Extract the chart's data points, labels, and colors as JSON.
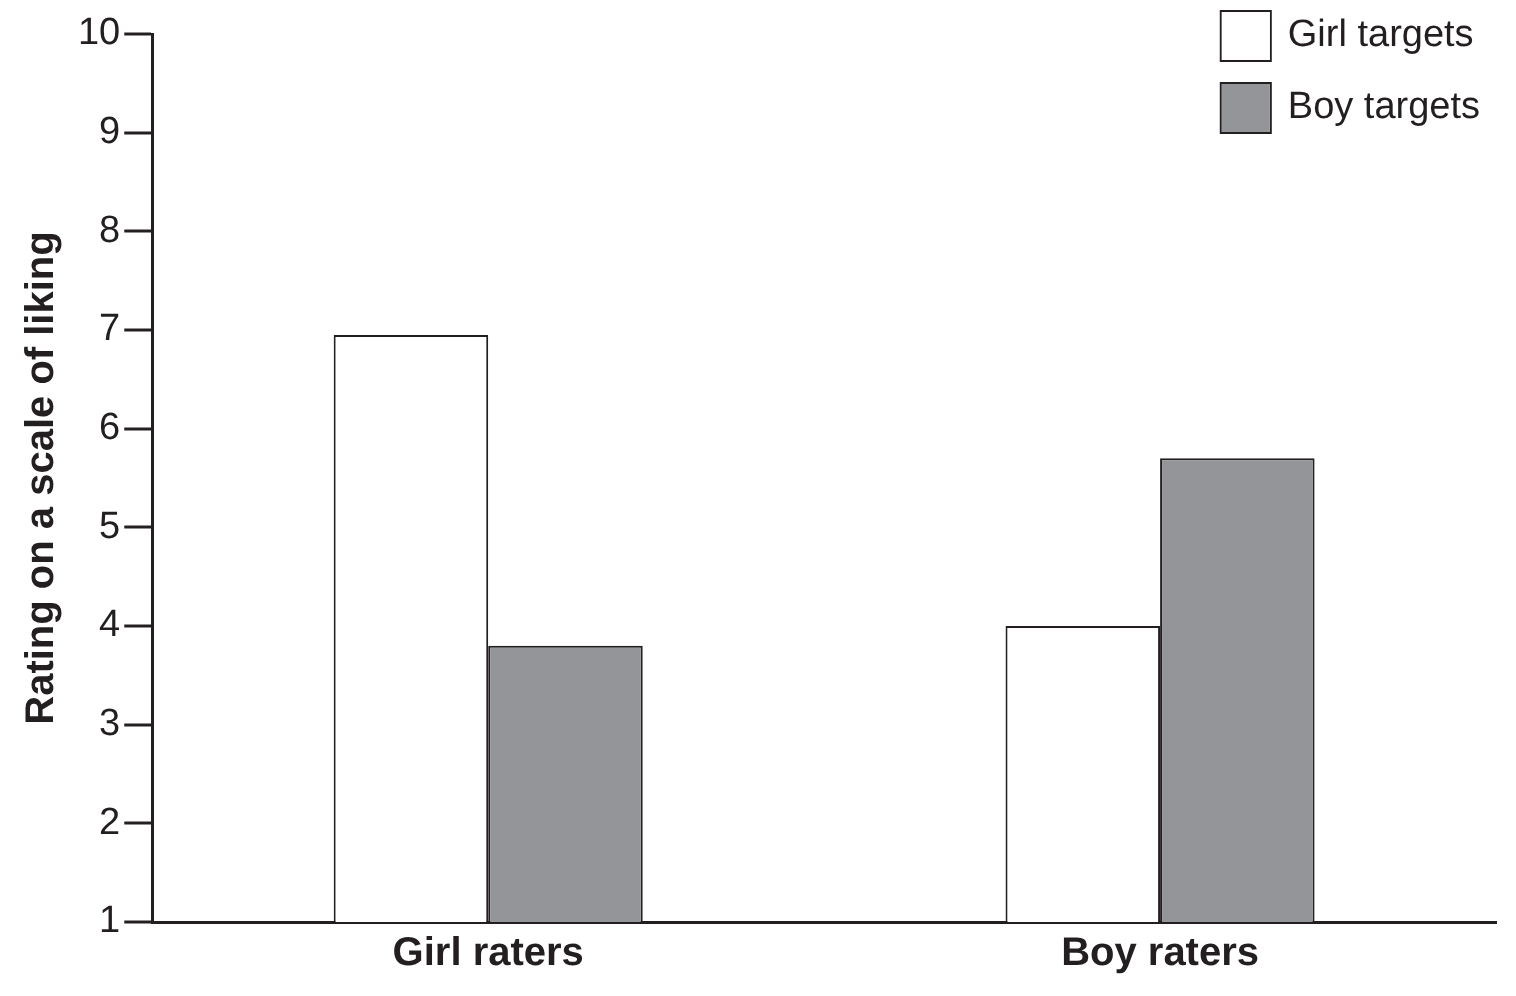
{
  "chart_data": {
    "type": "bar",
    "ylabel": "Rating on a scale of liking",
    "categories": [
      "Girl raters",
      "Boy raters"
    ],
    "series": [
      {
        "name": "Girl targets",
        "color": "#ffffff",
        "values": [
          6.95,
          4.0
        ]
      },
      {
        "name": "Boy targets",
        "color": "#939598",
        "values": [
          3.8,
          5.7
        ]
      }
    ],
    "ylim": [
      1,
      10
    ],
    "yticks": [
      1,
      2,
      3,
      4,
      5,
      6,
      7,
      8,
      9,
      10
    ],
    "grid": false,
    "legend": "top right"
  }
}
